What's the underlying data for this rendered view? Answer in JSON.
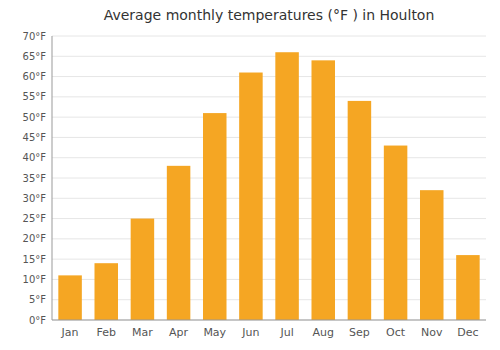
{
  "chart_data": {
    "type": "bar",
    "title": "Average monthly temperatures (°F ) in Houlton",
    "categories": [
      "Jan",
      "Feb",
      "Mar",
      "Apr",
      "May",
      "Jun",
      "Jul",
      "Aug",
      "Sep",
      "Oct",
      "Nov",
      "Dec"
    ],
    "values": [
      11,
      14,
      25,
      38,
      51,
      61,
      66,
      64,
      54,
      43,
      32,
      16
    ],
    "color": "#F5A623",
    "ylim": [
      0,
      70
    ],
    "yticks": [
      {
        "value": 0,
        "label": "0°F"
      },
      {
        "value": 5,
        "label": "5°F"
      },
      {
        "value": 10,
        "label": "10°F"
      },
      {
        "value": 15,
        "label": "15°F"
      },
      {
        "value": 20,
        "label": "20°F"
      },
      {
        "value": 25,
        "label": "25°F"
      },
      {
        "value": 30,
        "label": "30°F"
      },
      {
        "value": 35,
        "label": "35°F"
      },
      {
        "value": 40,
        "label": "40°F"
      },
      {
        "value": 45,
        "label": "45°F"
      },
      {
        "value": 50,
        "label": "50°F"
      },
      {
        "value": 55,
        "label": "55°F"
      },
      {
        "value": 60,
        "label": "60°F"
      },
      {
        "value": 65,
        "label": "65°F"
      },
      {
        "value": 70,
        "label": "70°F"
      }
    ],
    "grid": true
  }
}
